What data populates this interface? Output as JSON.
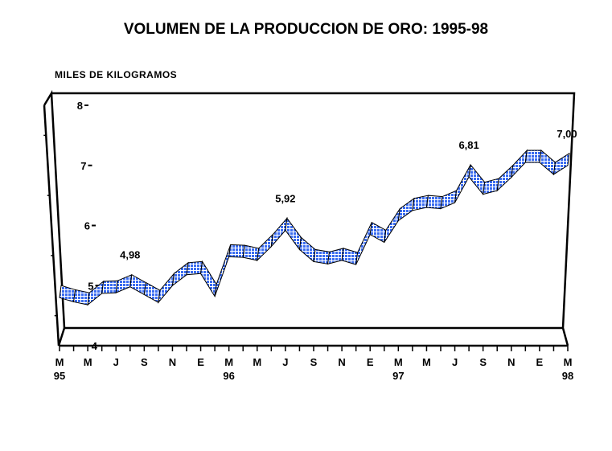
{
  "chart_data": {
    "type": "line",
    "title": "VOLUMEN  DE LA PRODUCCION DE ORO: 1995-98",
    "ylabel": "MILES  DE  KILOGRAMOS",
    "xlabel": "",
    "ylim": [
      4,
      8
    ],
    "yticks": [
      "4",
      "5",
      "6",
      "7",
      "8"
    ],
    "x_tick_labels": [
      "M",
      "M",
      "J",
      "S",
      "N",
      "E",
      "M",
      "M",
      "J",
      "S",
      "N",
      "E",
      "M",
      "M",
      "J",
      "S",
      "N",
      "E",
      "M"
    ],
    "year_labels": [
      {
        "index": 0,
        "label": "95"
      },
      {
        "index": 12,
        "label": "96"
      },
      {
        "index": 24,
        "label": "97"
      },
      {
        "index": 36,
        "label": "98"
      }
    ],
    "x": [
      "Mar-95",
      "Apr-95",
      "May-95",
      "Jun-95",
      "Jul-95",
      "Aug-95",
      "Sep-95",
      "Oct-95",
      "Nov-95",
      "Dec-95",
      "Jan-96",
      "Feb-96",
      "Mar-96",
      "Apr-96",
      "May-96",
      "Jun-96",
      "Jul-96",
      "Aug-96",
      "Sep-96",
      "Oct-96",
      "Nov-96",
      "Dec-96",
      "Jan-97",
      "Feb-97",
      "Mar-97",
      "Apr-97",
      "May-97",
      "Jun-97",
      "Jul-97",
      "Aug-97",
      "Sep-97",
      "Oct-97",
      "Nov-97",
      "Dec-97",
      "Jan-98",
      "Feb-98",
      "Mar-98"
    ],
    "series": [
      {
        "name": "Volumen",
        "values": [
          4.8,
          4.73,
          4.68,
          4.87,
          4.88,
          4.98,
          4.85,
          4.72,
          5.0,
          5.18,
          5.2,
          4.82,
          5.48,
          5.47,
          5.42,
          5.65,
          5.92,
          5.6,
          5.4,
          5.36,
          5.42,
          5.35,
          5.85,
          5.72,
          6.08,
          6.25,
          6.3,
          6.28,
          6.38,
          6.81,
          6.52,
          6.58,
          6.8,
          7.05,
          7.05,
          6.85,
          7.0
        ]
      }
    ],
    "annotations": [
      {
        "index": 5,
        "label": "4,98"
      },
      {
        "index": 16,
        "label": "5,92"
      },
      {
        "index": 29,
        "label": "6,81"
      },
      {
        "index": 36,
        "label": "7,00"
      }
    ],
    "grid": false,
    "legend": "none",
    "colors": {
      "ribbon": "#3a6cf0",
      "frame": "#000000"
    }
  }
}
